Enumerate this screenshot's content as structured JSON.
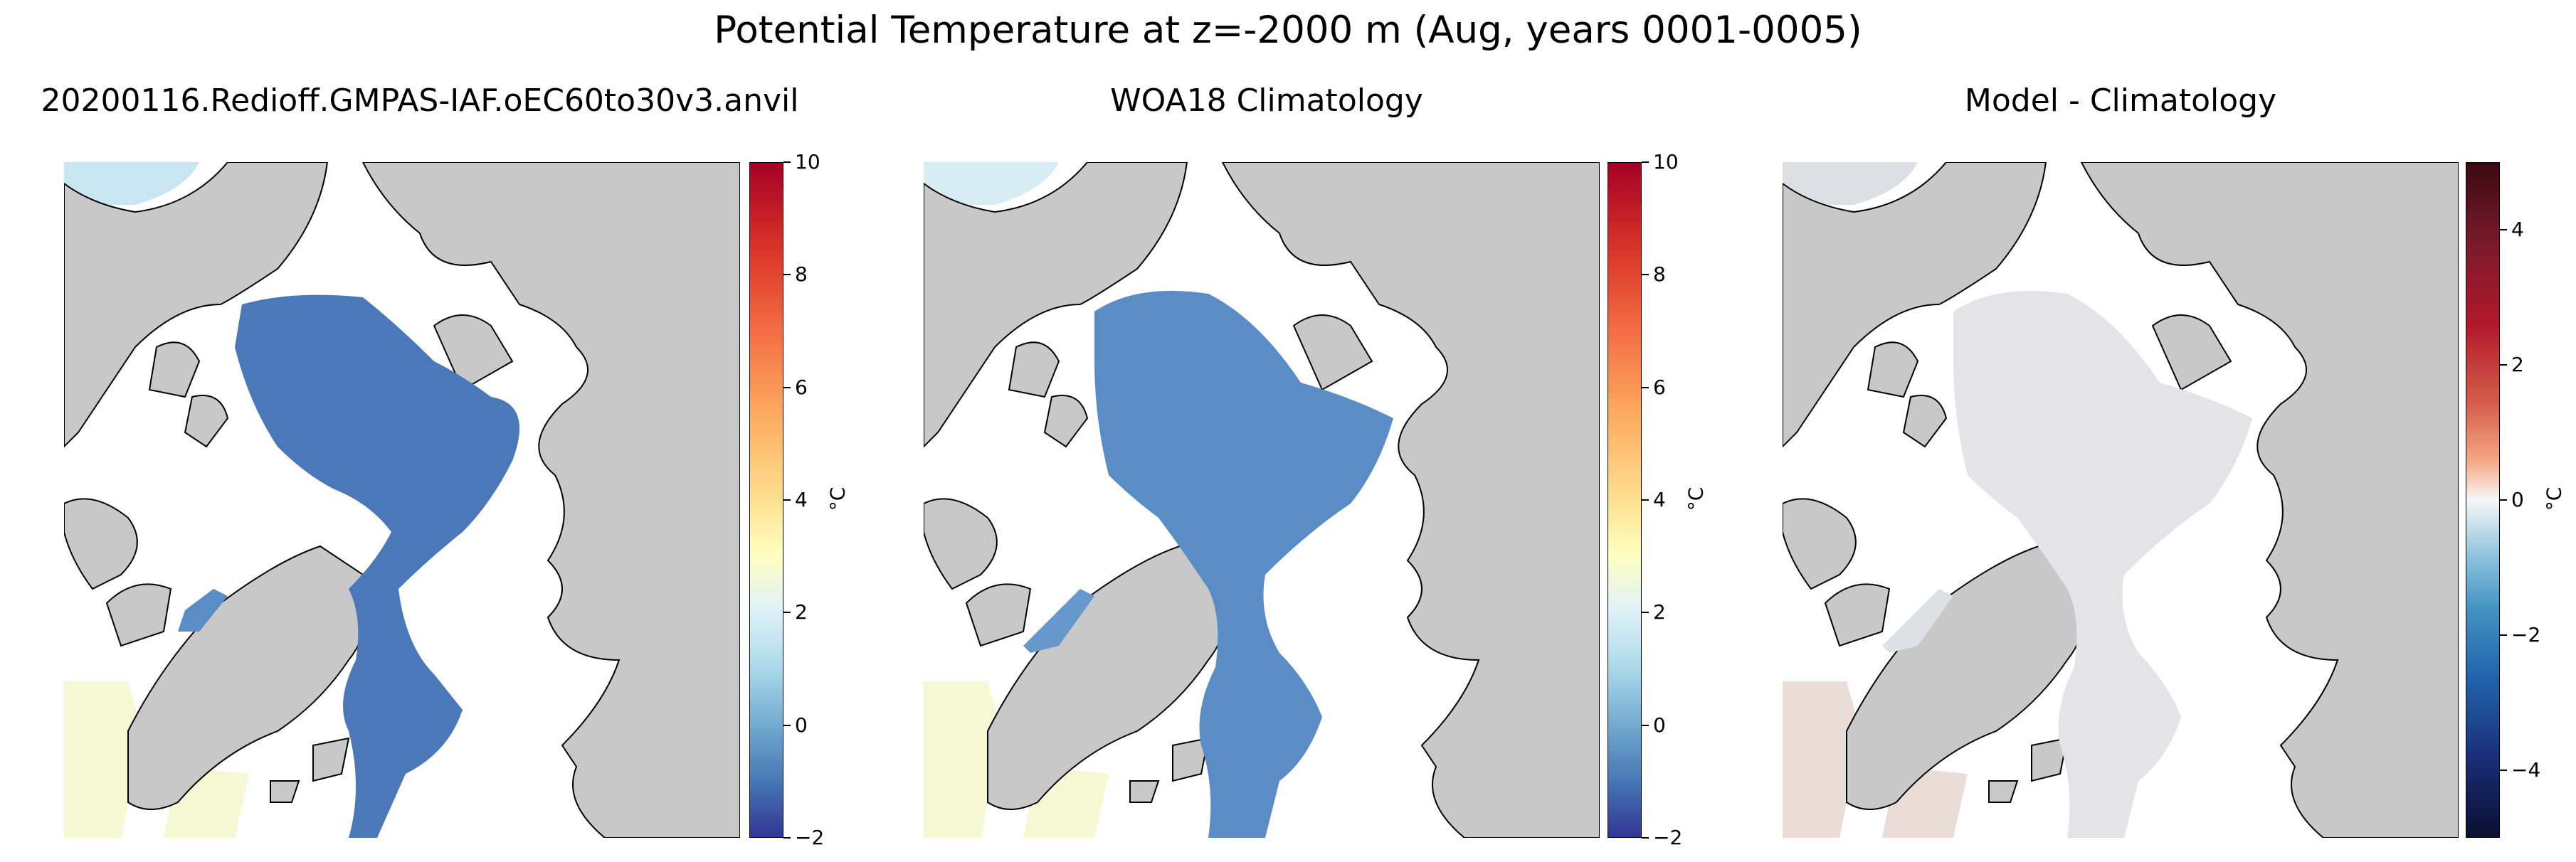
{
  "figure": {
    "title": "Potential Temperature at z=-2000 m (Aug, years 0001-0005)"
  },
  "panels": [
    {
      "title": "20200116.Redioff.GMPAS-IAF.oEC60to30v3.anvil",
      "colorbar": {
        "colormap": "RdYlBu_r",
        "unit": "°C",
        "range": [
          -2,
          10
        ],
        "ticks": [
          "10",
          "8",
          "6",
          "4",
          "2",
          "0",
          "−2"
        ],
        "tick_values": [
          10,
          8,
          6,
          4,
          2,
          0,
          -2
        ]
      }
    },
    {
      "title": "WOA18 Climatology",
      "colorbar": {
        "colormap": "RdYlBu_r",
        "unit": "°C",
        "range": [
          -2,
          10
        ],
        "ticks": [
          "10",
          "8",
          "6",
          "4",
          "2",
          "0",
          "−2"
        ],
        "tick_values": [
          10,
          8,
          6,
          4,
          2,
          0,
          -2
        ]
      }
    },
    {
      "title": "Model - Climatology",
      "colorbar": {
        "colormap": "RdBu_r (diverging)",
        "unit": "°C",
        "range": [
          -5,
          5
        ],
        "ticks": [
          "4",
          "2",
          "0",
          "−2",
          "−4"
        ],
        "tick_values": [
          4,
          2,
          0,
          -2,
          -4
        ]
      }
    }
  ],
  "colors": {
    "land": "#c8c8c8",
    "no_data": "#ffffff",
    "model_field": "#4a78b8",
    "climatology_field": "#5a8cc6",
    "difference_field": "#e4e4e6",
    "light_blue_region": "#c8e6f2",
    "pale_yellow_region": "#f5f8d2"
  }
}
